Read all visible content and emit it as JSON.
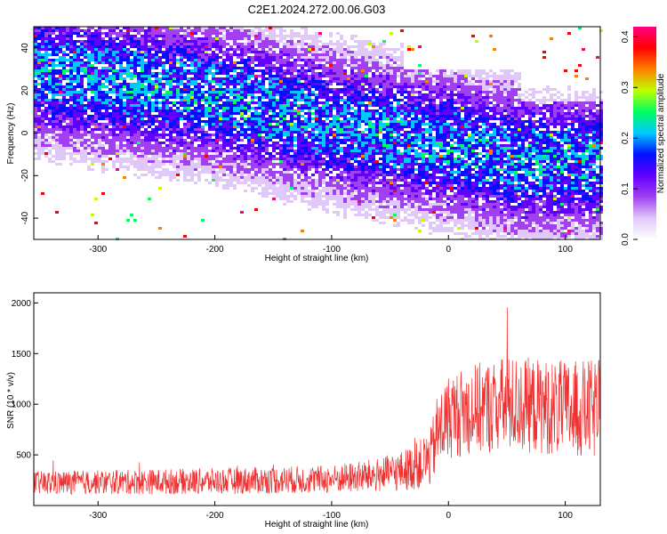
{
  "title": "C2E1.2024.272.00.06.G03",
  "chart_data": [
    {
      "type": "heatmap",
      "xlabel": "Height of straight line (km)",
      "ylabel": "Frequency (Hz)",
      "xlim": [
        -355,
        130
      ],
      "ylim": [
        -50,
        50
      ],
      "xticks": [
        -300,
        -200,
        -100,
        0,
        100
      ],
      "yticks": [
        -40,
        -20,
        0,
        20,
        40
      ],
      "grid": false,
      "colorbar": {
        "label": "Normalized spectral amplitude",
        "range": [
          0.0,
          0.42
        ],
        "ticks": [
          "0.0",
          "0.1",
          "0.2",
          "0.3",
          "0.4"
        ],
        "colors": [
          "#ffffff",
          "#e0c8f8",
          "#a040f0",
          "#6000ff",
          "#0010ff",
          "#00c8ff",
          "#00ff60",
          "#c0ff00",
          "#ff8000",
          "#ff0000",
          "#ff0080"
        ]
      },
      "ridge": {
        "description_free_points": [
          [
            -355,
            30
          ],
          [
            -200,
            18
          ],
          [
            -100,
            5
          ],
          [
            0,
            -5
          ],
          [
            60,
            -12
          ],
          [
            130,
            -12
          ]
        ]
      }
    },
    {
      "type": "line",
      "xlabel": "Height of straight line (km)",
      "ylabel": "SNR (10 * v/v)",
      "xlim": [
        -355,
        130
      ],
      "ylim": [
        0,
        2100
      ],
      "xticks": [
        -300,
        -200,
        -100,
        0,
        100
      ],
      "yticks": [
        500,
        1000,
        1500,
        2000
      ],
      "color": "#f03030",
      "envelope": {
        "x": [
          -355,
          -300,
          -200,
          -100,
          -60,
          -40,
          -25,
          -15,
          -10,
          0,
          20,
          50,
          80,
          100,
          130
        ],
        "mean": [
          220,
          230,
          240,
          260,
          300,
          340,
          400,
          480,
          700,
          880,
          950,
          1000,
          980,
          950,
          940
        ],
        "spread": [
          120,
          120,
          130,
          140,
          170,
          200,
          240,
          300,
          380,
          420,
          450,
          480,
          470,
          480,
          500
        ]
      }
    }
  ]
}
